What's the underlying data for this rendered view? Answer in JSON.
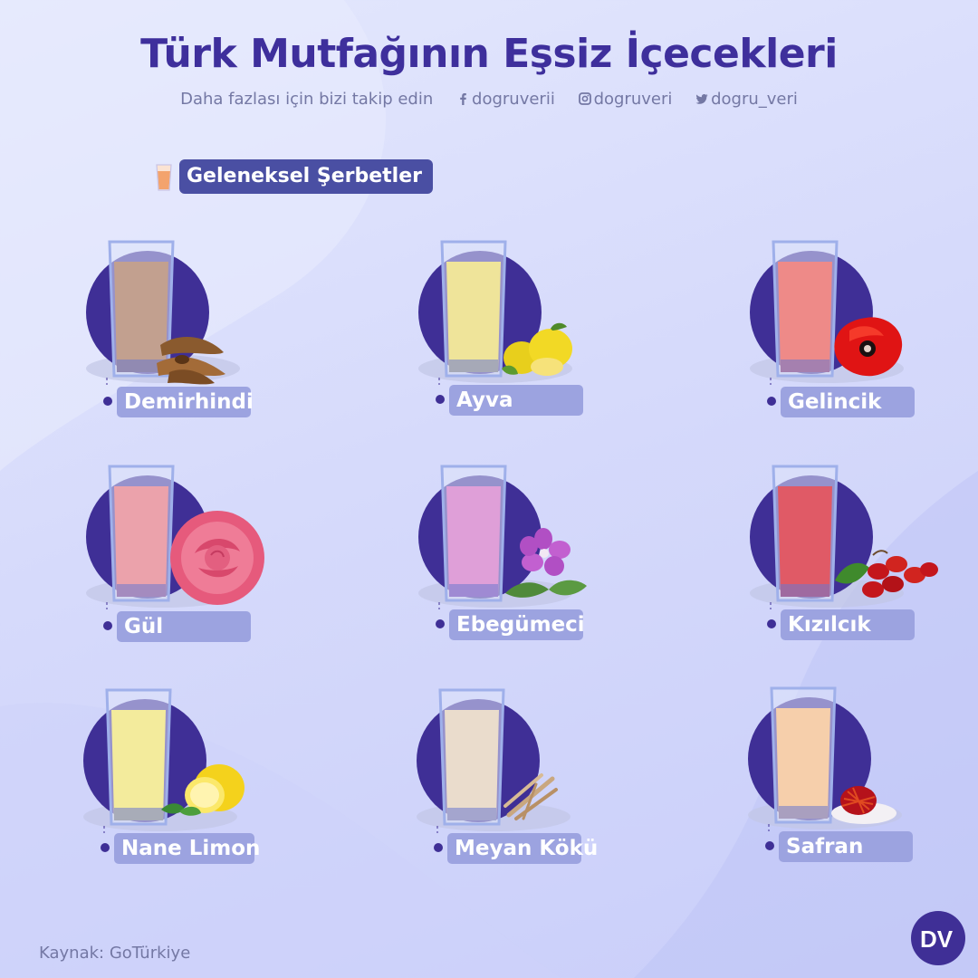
{
  "header": {
    "title": "Türk Mutfağının Eşsiz İçecekleri",
    "follow_text": "Daha fazlası için bizi takip edin",
    "facebook": "dogruverii",
    "instagram": "dogruveri",
    "twitter": "dogru_veri"
  },
  "category": {
    "label": "Geleneksel Şerbetler",
    "icon": "juice-glass-icon"
  },
  "drinks": [
    {
      "name": "Demirhindi",
      "liquid_color": "#c2a08f",
      "ingredient_icon": "tamarind-icon"
    },
    {
      "name": "Ayva",
      "liquid_color": "#efe49a",
      "ingredient_icon": "quince-icon"
    },
    {
      "name": "Gelincik",
      "liquid_color": "#ee8a88",
      "ingredient_icon": "poppy-icon"
    },
    {
      "name": "Gül",
      "liquid_color": "#eba2ab",
      "ingredient_icon": "rose-icon"
    },
    {
      "name": "Ebegümeci",
      "liquid_color": "#df9fd8",
      "ingredient_icon": "mallow-flower-icon"
    },
    {
      "name": "Kızılcık",
      "liquid_color": "#e05a66",
      "ingredient_icon": "cornelian-cherry-icon"
    },
    {
      "name": "Nane Limon",
      "liquid_color": "#f3eb9c",
      "ingredient_icon": "lemon-mint-icon"
    },
    {
      "name": "Meyan Kökü",
      "liquid_color": "#eadccc",
      "ingredient_icon": "licorice-root-icon"
    },
    {
      "name": "Safran",
      "liquid_color": "#f6cfab",
      "ingredient_icon": "saffron-icon"
    }
  ],
  "footer": {
    "source": "Kaynak:  GoTürkiye",
    "logo_text": "DV"
  },
  "colors": {
    "primary": "#3e2f9c",
    "circle": "#3f2f96",
    "label_bg": "#9ca3e0",
    "pill_bg": "#4a4fa3",
    "muted_text": "#7478a4"
  }
}
